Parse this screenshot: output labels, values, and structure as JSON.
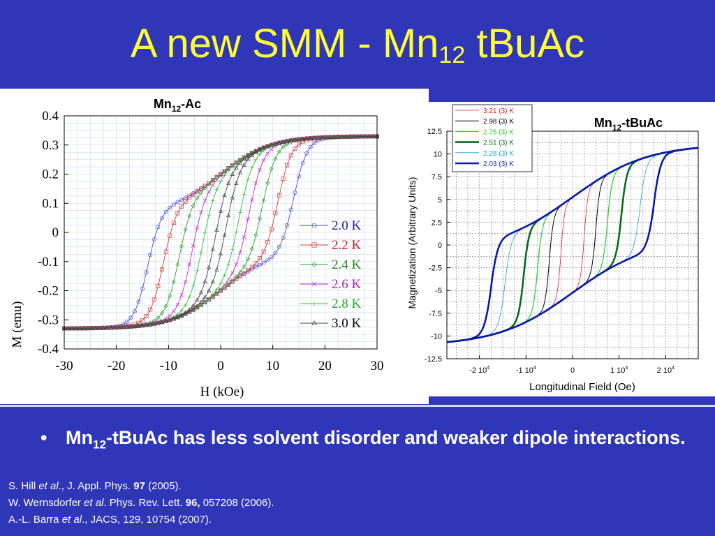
{
  "slide": {
    "background": "#2f36b8",
    "title_color": "#ffff33",
    "title_main": "A new SMM - Mn",
    "title_sub": "12",
    "title_end": " tBuAc",
    "bullet_symbol": "•",
    "bullet_pre": "Mn",
    "bullet_sub": "12",
    "bullet_text": "-tBuAc has less solvent disorder and weaker dipole interactions.",
    "refs": [
      {
        "pre": "S. Hill ",
        "etal": "et al",
        "mid": "., J. Appl. Phys. ",
        "bold": "97",
        "post": " (2005)."
      },
      {
        "pre": "W. Wernsdorfer ",
        "etal": "et al",
        "mid": ". Phys. Rev. Lett. ",
        "bold": "96,",
        "post": " 057208 (2006)."
      },
      {
        "pre": "A.-L. Barra ",
        "etal": "et al",
        "mid": "., JACS, 129, 10754 (2007).",
        "bold": "",
        "post": ""
      }
    ]
  },
  "chart_data": [
    {
      "type": "line",
      "title_pre": "Mn",
      "title_sub": "12",
      "title_post": "-Ac",
      "xlabel": "H (kOe)",
      "ylabel": "M (emu)",
      "xlim": [
        -30,
        30
      ],
      "ylim": [
        -0.4,
        0.4
      ],
      "xticks": [
        "-30",
        "-20",
        "-10",
        "0",
        "10",
        "20",
        "30"
      ],
      "yticks": [
        "0.4",
        "0.3",
        "0.2",
        "0.1",
        "0",
        "-0.1",
        "-0.2",
        "-0.3",
        "-0.4"
      ],
      "grid": true,
      "legend_position": "right",
      "series": [
        {
          "name": "2.0 K",
          "color": "#4a4ad0",
          "marker": "circle",
          "coercive": 14.0
        },
        {
          "name": "2.2 K",
          "color": "#d03a3a",
          "marker": "square",
          "coercive": 11.0
        },
        {
          "name": "2.4 K",
          "color": "#2ea02e",
          "marker": "diamond",
          "coercive": 8.0
        },
        {
          "name": "2.6 K",
          "color": "#c030c0",
          "marker": "cross",
          "coercive": 5.5
        },
        {
          "name": "2.8 K",
          "color": "#30c030",
          "marker": "plus",
          "coercive": 3.5
        },
        {
          "name": "3.0 K",
          "color": "#444444",
          "marker": "triangle",
          "coercive": 1.0
        }
      ]
    },
    {
      "type": "line",
      "title_pre": "Mn",
      "title_sub": "12",
      "title_post": "-tBuAc",
      "xlabel": "Longitudinal Field (Oe)",
      "ylabel": "Magnetization (Arbitrary Units)",
      "xlim": [
        -27000,
        27000
      ],
      "ylim": [
        -12.5,
        12.5
      ],
      "xticks": [
        "-2 10",
        "-1 10",
        "0",
        "1 10",
        "2 10"
      ],
      "xtick_exp": "4",
      "yticks": [
        "12.5",
        "10",
        "7.5",
        "5",
        "2.5",
        "0",
        "-2.5",
        "-5",
        "-7.5",
        "-10",
        "-12.5"
      ],
      "grid": true,
      "legend_position": "top-left",
      "series": [
        {
          "name": "3.21 (3) K",
          "color": "#e02020",
          "coercive": 2500
        },
        {
          "name": "2.98 (3) K",
          "color": "#000000",
          "coercive": 5000
        },
        {
          "name": "2.75 (3) K",
          "color": "#33cc33",
          "coercive": 7500
        },
        {
          "name": "2.51 (3) K",
          "color": "#0a6a1e",
          "coercive": 10500
        },
        {
          "name": "2.28 (3) K",
          "color": "#1aa0d0",
          "coercive": 14500
        },
        {
          "name": "2.03 (3) K",
          "color": "#0a1aa8",
          "coercive": 17500
        }
      ]
    }
  ]
}
